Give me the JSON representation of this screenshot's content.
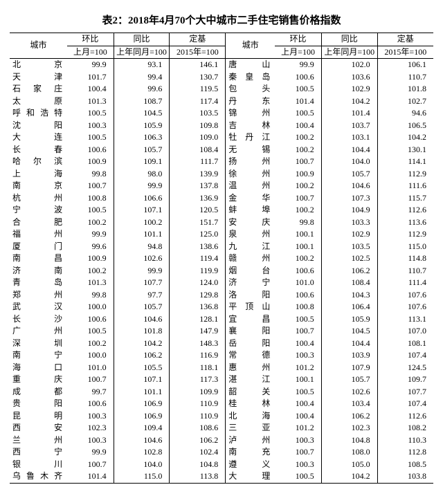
{
  "title": "表2：2018年4月70个大中城市二手住宅销售价格指数",
  "header": {
    "city": "城市",
    "mom": {
      "top": "环比",
      "sub": "上月=100"
    },
    "yoy": {
      "top": "同比",
      "sub": "上年同月=100"
    },
    "base": {
      "top": "定基",
      "sub": "2015年=100"
    }
  },
  "rows": [
    {
      "l": {
        "c": "北京",
        "m": "99.9",
        "y": "93.1",
        "b": "146.1"
      },
      "r": {
        "c": "唐山",
        "m": "99.9",
        "y": "102.0",
        "b": "106.1"
      }
    },
    {
      "l": {
        "c": "天津",
        "m": "101.7",
        "y": "99.4",
        "b": "130.7"
      },
      "r": {
        "c": "秦皇岛",
        "m": "100.6",
        "y": "103.6",
        "b": "110.7"
      }
    },
    {
      "l": {
        "c": "石家庄",
        "m": "100.4",
        "y": "99.6",
        "b": "119.5"
      },
      "r": {
        "c": "包头",
        "m": "100.5",
        "y": "102.9",
        "b": "101.8"
      }
    },
    {
      "l": {
        "c": "太原",
        "m": "101.3",
        "y": "108.7",
        "b": "117.4"
      },
      "r": {
        "c": "丹东",
        "m": "101.4",
        "y": "104.2",
        "b": "102.7"
      }
    },
    {
      "l": {
        "c": "呼和浩特",
        "m": "100.5",
        "y": "104.5",
        "b": "103.5"
      },
      "r": {
        "c": "锦州",
        "m": "100.5",
        "y": "101.4",
        "b": "94.6"
      }
    },
    {
      "l": {
        "c": "沈阳",
        "m": "100.3",
        "y": "105.9",
        "b": "109.8"
      },
      "r": {
        "c": "吉林",
        "m": "100.4",
        "y": "103.7",
        "b": "106.5"
      }
    },
    {
      "l": {
        "c": "大连",
        "m": "100.5",
        "y": "106.3",
        "b": "109.0"
      },
      "r": {
        "c": "牡丹江",
        "m": "100.2",
        "y": "103.1",
        "b": "104.2"
      }
    },
    {
      "l": {
        "c": "长春",
        "m": "100.6",
        "y": "105.7",
        "b": "108.4"
      },
      "r": {
        "c": "无锡",
        "m": "100.2",
        "y": "104.4",
        "b": "130.1"
      }
    },
    {
      "l": {
        "c": "哈尔滨",
        "m": "100.9",
        "y": "109.1",
        "b": "111.7"
      },
      "r": {
        "c": "扬州",
        "m": "100.7",
        "y": "104.0",
        "b": "114.1"
      }
    },
    {
      "l": {
        "c": "上海",
        "m": "99.8",
        "y": "98.0",
        "b": "139.9"
      },
      "r": {
        "c": "徐州",
        "m": "100.9",
        "y": "105.7",
        "b": "112.9"
      }
    },
    {
      "l": {
        "c": "南京",
        "m": "100.7",
        "y": "99.9",
        "b": "137.8"
      },
      "r": {
        "c": "温州",
        "m": "100.2",
        "y": "104.6",
        "b": "111.6"
      }
    },
    {
      "l": {
        "c": "杭州",
        "m": "100.8",
        "y": "106.6",
        "b": "136.9"
      },
      "r": {
        "c": "金华",
        "m": "100.7",
        "y": "107.3",
        "b": "115.7"
      }
    },
    {
      "l": {
        "c": "宁波",
        "m": "100.5",
        "y": "107.1",
        "b": "120.5"
      },
      "r": {
        "c": "蚌埠",
        "m": "100.2",
        "y": "104.9",
        "b": "112.6"
      }
    },
    {
      "l": {
        "c": "合肥",
        "m": "100.2",
        "y": "100.2",
        "b": "151.7"
      },
      "r": {
        "c": "安庆",
        "m": "99.8",
        "y": "103.3",
        "b": "113.6"
      }
    },
    {
      "l": {
        "c": "福州",
        "m": "99.9",
        "y": "101.1",
        "b": "125.0"
      },
      "r": {
        "c": "泉州",
        "m": "100.1",
        "y": "102.9",
        "b": "112.9"
      }
    },
    {
      "l": {
        "c": "厦门",
        "m": "99.6",
        "y": "94.8",
        "b": "138.6"
      },
      "r": {
        "c": "九江",
        "m": "100.1",
        "y": "103.5",
        "b": "115.0"
      }
    },
    {
      "l": {
        "c": "南昌",
        "m": "100.9",
        "y": "102.6",
        "b": "119.4"
      },
      "r": {
        "c": "赣州",
        "m": "100.2",
        "y": "102.5",
        "b": "114.8"
      }
    },
    {
      "l": {
        "c": "济南",
        "m": "100.2",
        "y": "99.9",
        "b": "119.9"
      },
      "r": {
        "c": "烟台",
        "m": "100.6",
        "y": "106.2",
        "b": "110.7"
      }
    },
    {
      "l": {
        "c": "青岛",
        "m": "101.3",
        "y": "107.7",
        "b": "124.0"
      },
      "r": {
        "c": "济宁",
        "m": "101.0",
        "y": "108.4",
        "b": "111.4"
      }
    },
    {
      "l": {
        "c": "郑州",
        "m": "99.8",
        "y": "97.7",
        "b": "129.8"
      },
      "r": {
        "c": "洛阳",
        "m": "100.6",
        "y": "104.3",
        "b": "107.6"
      }
    },
    {
      "l": {
        "c": "武汉",
        "m": "100.0",
        "y": "105.7",
        "b": "136.8"
      },
      "r": {
        "c": "平顶山",
        "m": "100.8",
        "y": "106.4",
        "b": "107.6"
      }
    },
    {
      "l": {
        "c": "长沙",
        "m": "100.6",
        "y": "104.6",
        "b": "128.1"
      },
      "r": {
        "c": "宜昌",
        "m": "100.5",
        "y": "105.9",
        "b": "113.1"
      }
    },
    {
      "l": {
        "c": "广州",
        "m": "100.5",
        "y": "101.8",
        "b": "147.9"
      },
      "r": {
        "c": "襄阳",
        "m": "100.7",
        "y": "104.5",
        "b": "107.0"
      }
    },
    {
      "l": {
        "c": "深圳",
        "m": "100.2",
        "y": "104.2",
        "b": "148.3"
      },
      "r": {
        "c": "岳阳",
        "m": "100.4",
        "y": "104.4",
        "b": "108.1"
      }
    },
    {
      "l": {
        "c": "南宁",
        "m": "100.0",
        "y": "106.2",
        "b": "116.9"
      },
      "r": {
        "c": "常德",
        "m": "100.3",
        "y": "103.9",
        "b": "107.4"
      }
    },
    {
      "l": {
        "c": "海口",
        "m": "101.0",
        "y": "105.5",
        "b": "118.1"
      },
      "r": {
        "c": "惠州",
        "m": "101.2",
        "y": "107.9",
        "b": "124.5"
      }
    },
    {
      "l": {
        "c": "重庆",
        "m": "100.7",
        "y": "107.1",
        "b": "117.3"
      },
      "r": {
        "c": "湛江",
        "m": "100.1",
        "y": "105.7",
        "b": "109.7"
      }
    },
    {
      "l": {
        "c": "成都",
        "m": "99.7",
        "y": "101.1",
        "b": "109.9"
      },
      "r": {
        "c": "韶关",
        "m": "100.5",
        "y": "102.6",
        "b": "107.7"
      }
    },
    {
      "l": {
        "c": "贵阳",
        "m": "100.6",
        "y": "106.9",
        "b": "110.9"
      },
      "r": {
        "c": "桂林",
        "m": "100.4",
        "y": "103.4",
        "b": "107.4"
      }
    },
    {
      "l": {
        "c": "昆明",
        "m": "100.3",
        "y": "106.9",
        "b": "110.9"
      },
      "r": {
        "c": "北海",
        "m": "100.4",
        "y": "106.2",
        "b": "112.6"
      }
    },
    {
      "l": {
        "c": "西安",
        "m": "102.3",
        "y": "109.4",
        "b": "108.6"
      },
      "r": {
        "c": "三亚",
        "m": "101.2",
        "y": "102.3",
        "b": "108.2"
      }
    },
    {
      "l": {
        "c": "兰州",
        "m": "100.3",
        "y": "104.6",
        "b": "106.2"
      },
      "r": {
        "c": "泸州",
        "m": "100.3",
        "y": "104.8",
        "b": "110.3"
      }
    },
    {
      "l": {
        "c": "西宁",
        "m": "99.9",
        "y": "102.8",
        "b": "102.4"
      },
      "r": {
        "c": "南充",
        "m": "100.7",
        "y": "108.0",
        "b": "112.8"
      }
    },
    {
      "l": {
        "c": "银川",
        "m": "100.7",
        "y": "104.0",
        "b": "104.8"
      },
      "r": {
        "c": "遵义",
        "m": "100.3",
        "y": "105.0",
        "b": "108.5"
      }
    },
    {
      "l": {
        "c": "乌鲁木齐",
        "m": "101.4",
        "y": "115.0",
        "b": "113.8"
      },
      "r": {
        "c": "大理",
        "m": "100.5",
        "y": "104.2",
        "b": "103.8"
      }
    }
  ]
}
